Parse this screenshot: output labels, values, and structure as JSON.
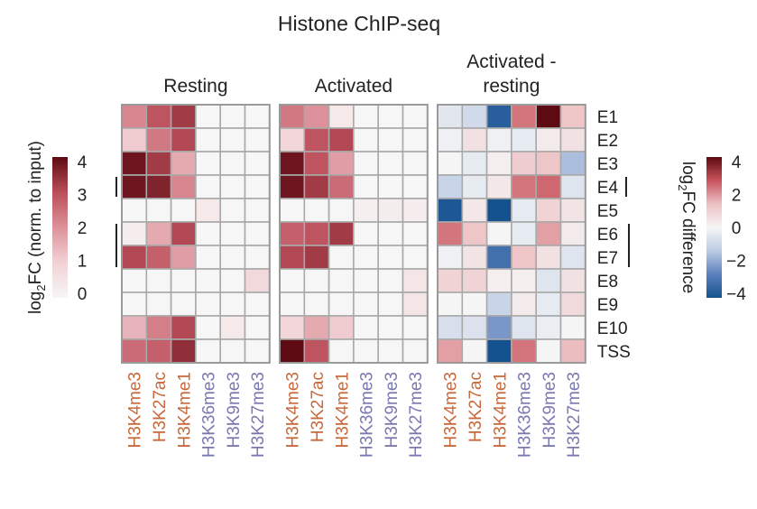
{
  "chart_data": {
    "type": "heatmap",
    "title": "Histone ChIP-seq",
    "rows": [
      "E1",
      "E2",
      "E3",
      "E4",
      "E5",
      "E6",
      "E7",
      "E8",
      "E9",
      "E10",
      "TSS"
    ],
    "columns": [
      "H3K4me3",
      "H3K27ac",
      "H3K4me1",
      "H3K36me3",
      "H3K9me3",
      "H3K27me3"
    ],
    "column_colors": [
      "#c8683a",
      "#c8683a",
      "#c8683a",
      "#7a78b0",
      "#7a78b0",
      "#7a78b0"
    ],
    "panels": [
      {
        "name": "Resting",
        "scale": "fc",
        "values": [
          [
            2.4,
            3.2,
            3.6,
            0,
            0,
            0
          ],
          [
            1.2,
            2.6,
            3.4,
            0,
            0,
            0
          ],
          [
            4.2,
            3.6,
            1.8,
            0,
            0,
            0
          ],
          [
            4.2,
            4.0,
            2.4,
            0,
            0,
            0
          ],
          [
            0,
            0,
            0,
            0.4,
            0,
            0
          ],
          [
            0.3,
            1.8,
            3.4,
            0,
            0,
            0
          ],
          [
            3.4,
            3.0,
            2.0,
            0,
            0,
            0
          ],
          [
            0,
            0,
            0,
            0,
            0,
            0.9
          ],
          [
            0,
            0,
            0,
            0,
            0,
            0
          ],
          [
            1.6,
            2.5,
            3.4,
            0,
            0.4,
            0
          ],
          [
            2.8,
            3.0,
            3.8,
            0,
            0,
            0
          ]
        ]
      },
      {
        "name": "Activated",
        "scale": "fc",
        "values": [
          [
            2.6,
            2.2,
            0.4,
            0,
            0,
            0
          ],
          [
            1.0,
            3.2,
            3.4,
            0,
            0,
            0
          ],
          [
            4.2,
            3.2,
            2.0,
            0,
            0,
            0
          ],
          [
            4.2,
            3.6,
            2.8,
            0,
            0,
            0
          ],
          [
            0,
            0,
            0,
            0.2,
            0.3,
            0.3
          ],
          [
            3.0,
            3.2,
            3.6,
            0,
            0,
            0
          ],
          [
            3.4,
            3.6,
            0,
            0,
            0,
            0
          ],
          [
            0,
            0,
            0,
            0,
            0,
            0.5
          ],
          [
            0,
            0,
            0,
            0,
            0,
            0.5
          ],
          [
            1.0,
            1.8,
            1.2,
            0,
            0,
            0
          ],
          [
            4.4,
            3.2,
            0,
            0,
            0,
            0
          ]
        ]
      },
      {
        "name": "Activated - resting",
        "title_lines": [
          "Activated -",
          "resting"
        ],
        "scale": "diff",
        "values": [
          [
            -0.5,
            -1.0,
            -4.2,
            2.6,
            4.6,
            1.4
          ],
          [
            -0.2,
            0.6,
            -0.2,
            -0.4,
            0.3,
            0.6
          ],
          [
            0,
            -0.4,
            0.2,
            1.2,
            1.4,
            -1.8
          ],
          [
            -1.2,
            -0.4,
            0.4,
            2.6,
            2.8,
            -0.6
          ],
          [
            -4.4,
            0.4,
            -4.6,
            -0.4,
            1.0,
            0.5
          ],
          [
            2.6,
            1.4,
            0,
            -0.4,
            2.0,
            0.3
          ],
          [
            -0.2,
            0.5,
            -3.6,
            1.4,
            0.6,
            -0.6
          ],
          [
            1.0,
            1.0,
            0.2,
            0.2,
            -0.6,
            0.6
          ],
          [
            0,
            0,
            -1.2,
            0.3,
            -0.4,
            0.8
          ],
          [
            -0.8,
            -0.7,
            -2.6,
            -0.6,
            -0.3,
            0
          ],
          [
            2.0,
            0,
            -4.6,
            2.6,
            0,
            1.6
          ]
        ]
      }
    ],
    "left_colorbar": {
      "label": "log2FC (norm. to input)",
      "label_parts": {
        "base": "log",
        "sub": "2",
        "rest": "FC (norm. to input)"
      },
      "ticks": [
        "0",
        "1",
        "2",
        "3",
        "4"
      ],
      "range": [
        0,
        4.4
      ],
      "colors": [
        "#f6f6f6",
        "#f2d2d6",
        "#dd919a",
        "#bb4e59",
        "#5d0a12"
      ]
    },
    "right_colorbar": {
      "label": "log2FC difference",
      "label_parts": {
        "base": "log",
        "sub": "2",
        "rest": "FC difference"
      },
      "ticks": [
        "4",
        "2",
        "0",
        "−2",
        "−4"
      ],
      "range": [
        -4.6,
        4.6
      ],
      "colors": [
        "#14528f",
        "#5b80bc",
        "#bccbe4",
        "#f5f5f5",
        "#edc1c4",
        "#c8545d",
        "#5d0a12"
      ]
    },
    "brackets": [
      {
        "rows": [
          "E4"
        ],
        "side": "left"
      },
      {
        "rows": [
          "E6",
          "E7"
        ],
        "side": "left"
      },
      {
        "rows": [
          "E4"
        ],
        "side": "right"
      },
      {
        "rows": [
          "E6",
          "E7"
        ],
        "side": "right"
      }
    ]
  }
}
